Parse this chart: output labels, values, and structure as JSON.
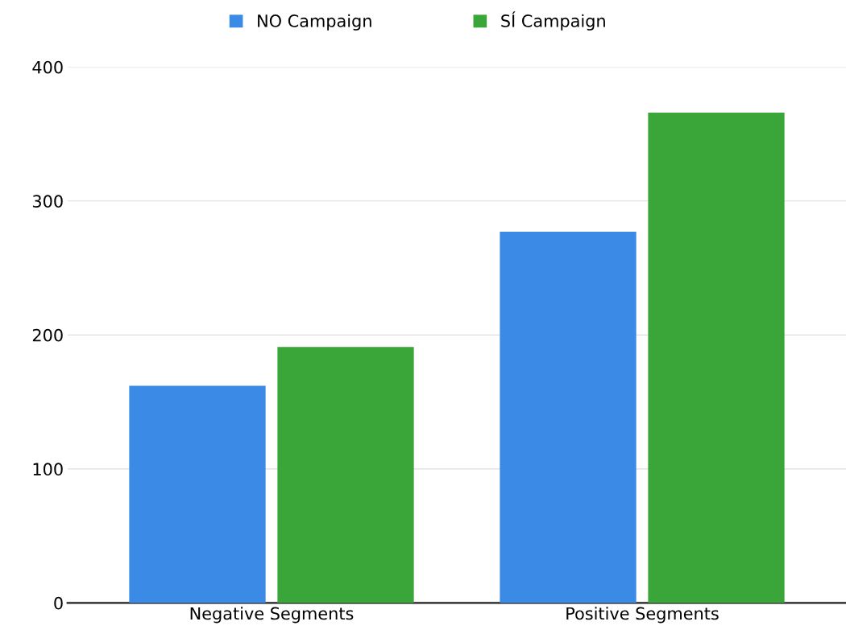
{
  "chart_data": {
    "type": "bar",
    "categories": [
      "Negative Segments",
      "Positive Segments"
    ],
    "series": [
      {
        "name": "NO Campaign",
        "color": "#3a8ae6",
        "values": [
          162,
          277
        ]
      },
      {
        "name": "SÍ Campaign",
        "color": "#3aa63a",
        "values": [
          191,
          366
        ]
      }
    ],
    "ylim": [
      0,
      400
    ],
    "yticks": [
      0,
      100,
      200,
      300,
      400
    ],
    "grid": "y",
    "legend": "top"
  }
}
